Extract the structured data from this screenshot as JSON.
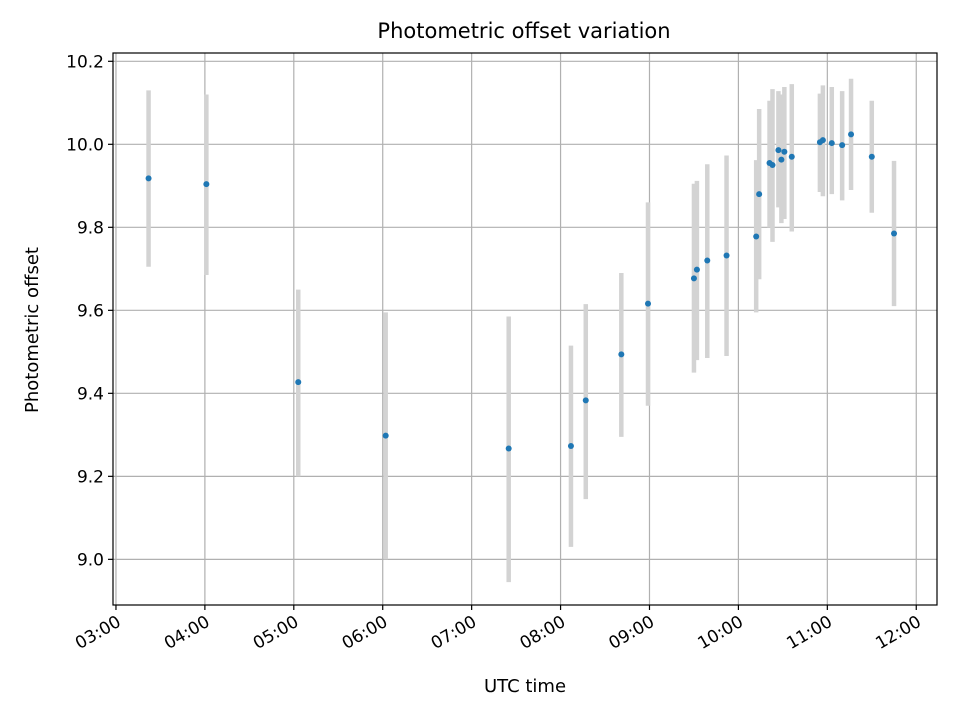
{
  "chart_data": {
    "type": "scatter",
    "title": "Photometric offset variation",
    "xlabel": "UTC time",
    "ylabel": "Photometric offset",
    "x_ticks": [
      "03:00",
      "04:00",
      "05:00",
      "06:00",
      "07:00",
      "08:00",
      "09:00",
      "10:00",
      "11:00",
      "12:00"
    ],
    "y_ticks": [
      "9.0",
      "9.2",
      "9.4",
      "9.6",
      "9.8",
      "10.0",
      "10.2"
    ],
    "xlim": [
      "02:58",
      "12:14"
    ],
    "ylim": [
      8.89,
      10.22
    ],
    "grid": true,
    "series": [
      {
        "points": [
          {
            "x": "03:22",
            "y": 9.918,
            "lo": 9.705,
            "hi": 10.13
          },
          {
            "x": "04:01",
            "y": 9.904,
            "lo": 9.685,
            "hi": 10.12
          },
          {
            "x": "05:03",
            "y": 9.427,
            "lo": 9.2,
            "hi": 9.65
          },
          {
            "x": "06:02",
            "y": 9.298,
            "lo": 9.0,
            "hi": 9.595
          },
          {
            "x": "07:25",
            "y": 9.267,
            "lo": 8.945,
            "hi": 9.585
          },
          {
            "x": "08:07",
            "y": 9.273,
            "lo": 9.03,
            "hi": 9.515
          },
          {
            "x": "08:17",
            "y": 9.383,
            "lo": 9.145,
            "hi": 9.615
          },
          {
            "x": "08:41",
            "y": 9.494,
            "lo": 9.295,
            "hi": 9.69
          },
          {
            "x": "08:59",
            "y": 9.616,
            "lo": 9.37,
            "hi": 9.86
          },
          {
            "x": "09:30",
            "y": 9.677,
            "lo": 9.45,
            "hi": 9.905
          },
          {
            "x": "09:32",
            "y": 9.698,
            "lo": 9.48,
            "hi": 9.912
          },
          {
            "x": "09:39",
            "y": 9.72,
            "lo": 9.485,
            "hi": 9.952
          },
          {
            "x": "09:52",
            "y": 9.732,
            "lo": 9.49,
            "hi": 9.973
          },
          {
            "x": "10:12",
            "y": 9.778,
            "lo": 9.595,
            "hi": 9.962
          },
          {
            "x": "10:14",
            "y": 9.88,
            "lo": 9.675,
            "hi": 10.085
          },
          {
            "x": "10:21",
            "y": 9.955,
            "lo": 9.8,
            "hi": 10.105
          },
          {
            "x": "10:23",
            "y": 9.95,
            "lo": 9.765,
            "hi": 10.133
          },
          {
            "x": "10:27",
            "y": 9.986,
            "lo": 9.848,
            "hi": 10.128
          },
          {
            "x": "10:29",
            "y": 9.963,
            "lo": 9.81,
            "hi": 10.12
          },
          {
            "x": "10:31",
            "y": 9.982,
            "lo": 9.82,
            "hi": 10.138
          },
          {
            "x": "10:36",
            "y": 9.97,
            "lo": 9.79,
            "hi": 10.145
          },
          {
            "x": "10:55",
            "y": 10.005,
            "lo": 9.885,
            "hi": 10.122
          },
          {
            "x": "10:57",
            "y": 10.01,
            "lo": 9.875,
            "hi": 10.142
          },
          {
            "x": "11:03",
            "y": 10.003,
            "lo": 9.88,
            "hi": 10.138
          },
          {
            "x": "11:10",
            "y": 9.998,
            "lo": 9.865,
            "hi": 10.128
          },
          {
            "x": "11:16",
            "y": 10.024,
            "lo": 9.89,
            "hi": 10.158
          },
          {
            "x": "11:30",
            "y": 9.97,
            "lo": 9.835,
            "hi": 10.105
          },
          {
            "x": "11:45",
            "y": 9.785,
            "lo": 9.61,
            "hi": 9.96
          }
        ]
      }
    ]
  },
  "colors": {
    "point": "#1f77b4",
    "errorbar": "#d3d3d3",
    "grid": "#b0b0b0"
  }
}
